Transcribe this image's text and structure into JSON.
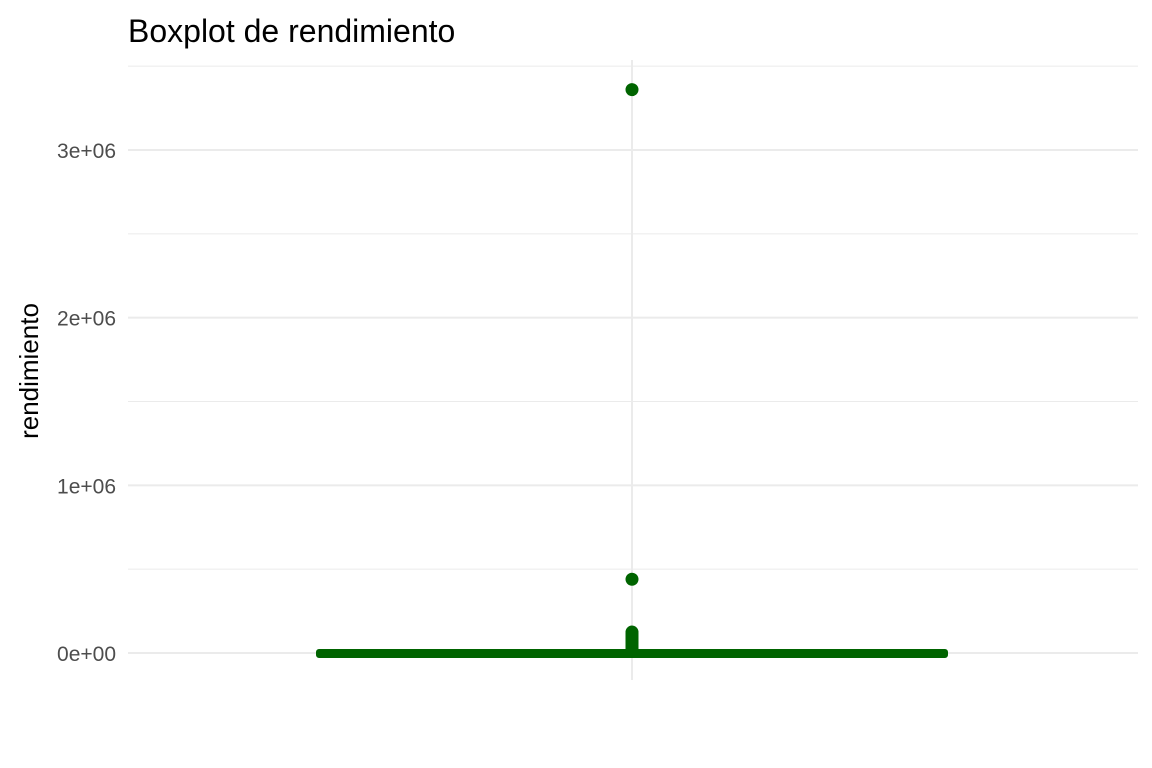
{
  "chart_data": {
    "type": "boxplot",
    "title": "Boxplot de rendimiento",
    "xlabel": "",
    "ylabel": "rendimiento",
    "ylim": [
      -150000,
      3500000
    ],
    "y_ticks": [
      {
        "value": 0,
        "label": "0e+00"
      },
      {
        "value": 1000000,
        "label": "1e+06"
      },
      {
        "value": 2000000,
        "label": "2e+06"
      },
      {
        "value": 3000000,
        "label": "3e+06"
      }
    ],
    "y_minor_ticks": [
      500000,
      1500000,
      2500000,
      3500000
    ],
    "grid": true,
    "box": {
      "min": 0,
      "q1": 0,
      "median": 0,
      "q3": 0,
      "max": 0,
      "color": "#006400"
    },
    "outliers": [
      3360000,
      440000,
      125000,
      115000,
      105000,
      95000,
      85000,
      75000,
      65000,
      55000,
      45000,
      35000,
      25000,
      15000
    ],
    "outlier_color": "#006400",
    "grid_color": "#ebebeb"
  }
}
